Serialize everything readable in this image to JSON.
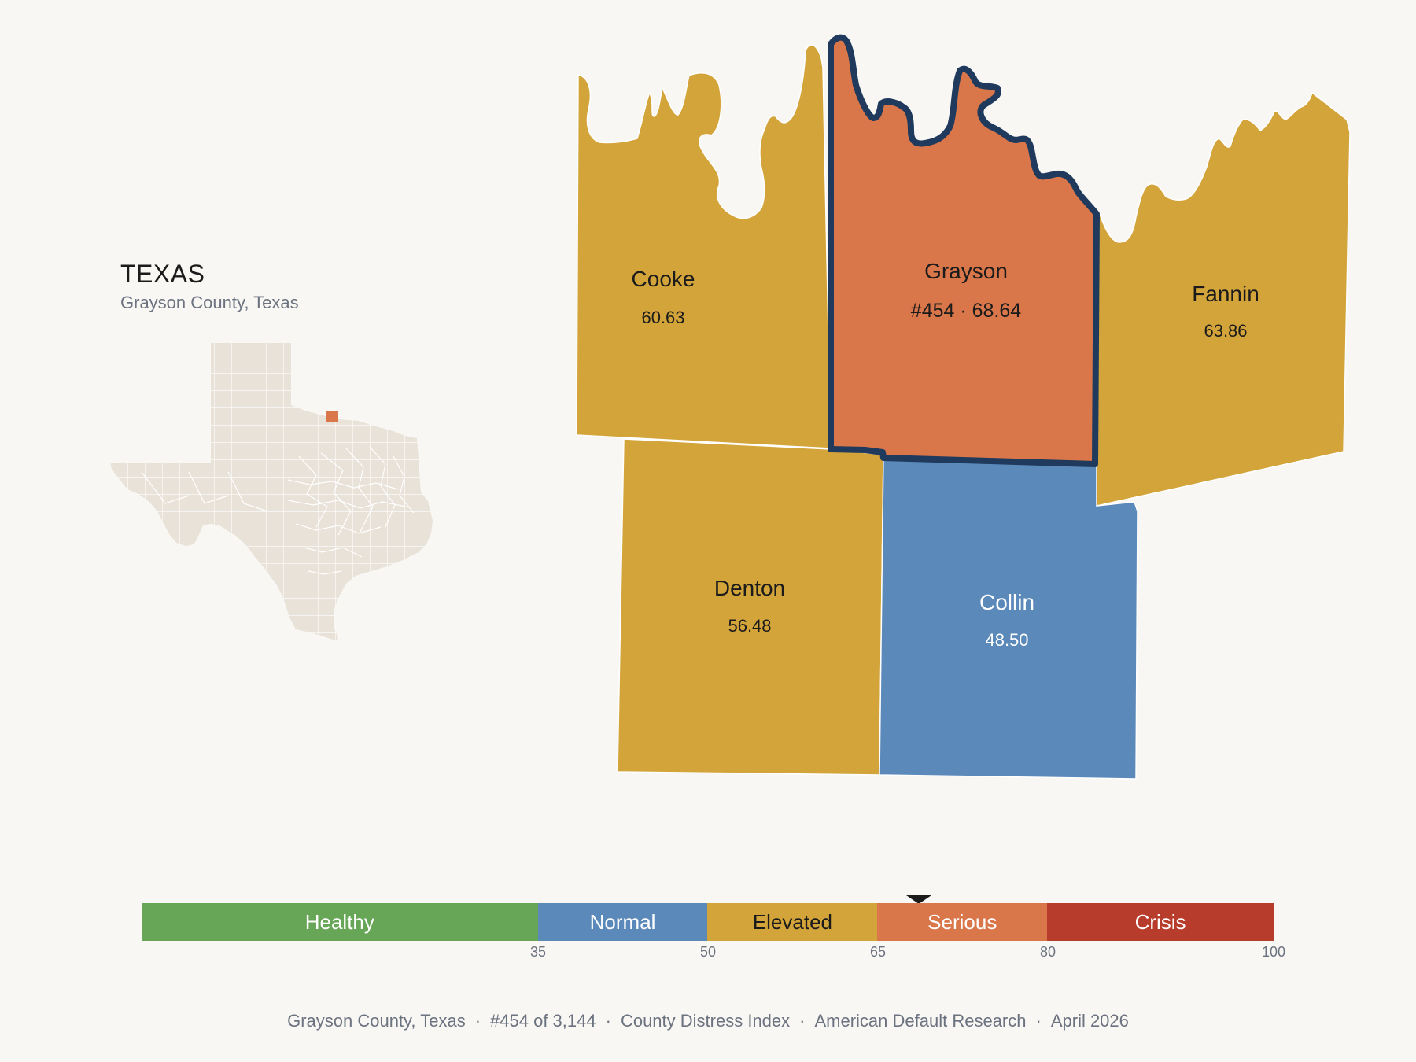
{
  "state": {
    "title": "TEXAS",
    "subtitle": "Grayson County, Texas",
    "inset_base_color": "#e8e2d8",
    "inset_highlight_color": "#d9774a"
  },
  "counties": {
    "cooke": {
      "name": "Cooke",
      "value": "60.63",
      "color": "#d3a43a"
    },
    "grayson": {
      "name": "Grayson",
      "value": "#454 · 68.64",
      "color": "#d9774a",
      "outline": "#1f3a5c"
    },
    "fannin": {
      "name": "Fannin",
      "value": "63.86",
      "color": "#d3a43a"
    },
    "denton": {
      "name": "Denton",
      "value": "56.48",
      "color": "#d3a43a"
    },
    "collin": {
      "name": "Collin",
      "value": "48.50",
      "color": "#5b89b9"
    }
  },
  "scale": {
    "bands": [
      {
        "label": "Healthy",
        "from": 0,
        "to": 35,
        "color": "#67a657"
      },
      {
        "label": "Normal",
        "from": 35,
        "to": 50,
        "color": "#5b89b9"
      },
      {
        "label": "Elevated",
        "from": 50,
        "to": 65,
        "color": "#d3a43a"
      },
      {
        "label": "Serious",
        "from": 65,
        "to": 80,
        "color": "#d9774a"
      },
      {
        "label": "Crisis",
        "from": 80,
        "to": 100,
        "color": "#b83c2c"
      }
    ],
    "ticks": [
      "35",
      "50",
      "65",
      "80",
      "100"
    ],
    "marker_value": 68.64
  },
  "footer": {
    "county": "Grayson County, Texas",
    "rank": "#454 of 3,144",
    "index": "County Distress Index",
    "org": "American Default Research",
    "date": "April 2026"
  }
}
